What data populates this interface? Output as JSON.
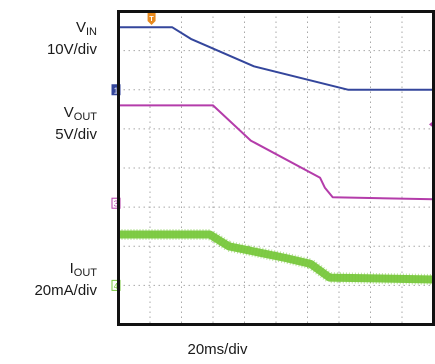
{
  "chart_data": {
    "type": "line",
    "title": "",
    "xlabel": "20ms/div",
    "ylabel": "",
    "grid": true,
    "divisions": {
      "x": 10,
      "y": 8
    },
    "timebase": "20ms/div",
    "xlim": [
      0,
      10
    ],
    "ylim": [
      0,
      8
    ],
    "trigger_marker": {
      "label": "T",
      "x": 1.05,
      "color": "#e88a1e"
    },
    "units": {
      "x": "div",
      "y": "div"
    },
    "series": [
      {
        "name": "VIN",
        "base": "V",
        "sub": "IN",
        "scale": "10V/div",
        "color": "#34469c",
        "marker": "1",
        "marker_y": 6.0,
        "points": [
          [
            0,
            7.6
          ],
          [
            0.6,
            7.6
          ],
          [
            1.7,
            7.6
          ],
          [
            2.3,
            7.3
          ],
          [
            4.3,
            6.6
          ],
          [
            7.3,
            6.0
          ],
          [
            9.0,
            6.0
          ],
          [
            10,
            6.0
          ]
        ]
      },
      {
        "name": "VOUT",
        "base": "V",
        "sub": "OUT",
        "scale": "5V/div",
        "color": "#b43caa",
        "marker": "3",
        "marker_y": 3.1,
        "points": [
          [
            0,
            5.6
          ],
          [
            2.1,
            5.6
          ],
          [
            3.0,
            5.6
          ],
          [
            4.2,
            4.7
          ],
          [
            6.4,
            3.75
          ],
          [
            6.55,
            3.5
          ],
          [
            6.8,
            3.25
          ],
          [
            10,
            3.2
          ]
        ]
      },
      {
        "name": "IOUT",
        "base": "I",
        "sub": "OUT",
        "scale": "20mA/div",
        "color": "#78c83c",
        "marker": "4",
        "marker_y": 1.0,
        "points": [
          [
            0,
            2.3
          ],
          [
            2.9,
            2.3
          ],
          [
            3.5,
            2.0
          ],
          [
            5.3,
            1.7
          ],
          [
            6.1,
            1.55
          ],
          [
            6.7,
            1.2
          ],
          [
            10,
            1.15
          ]
        ]
      }
    ]
  }
}
